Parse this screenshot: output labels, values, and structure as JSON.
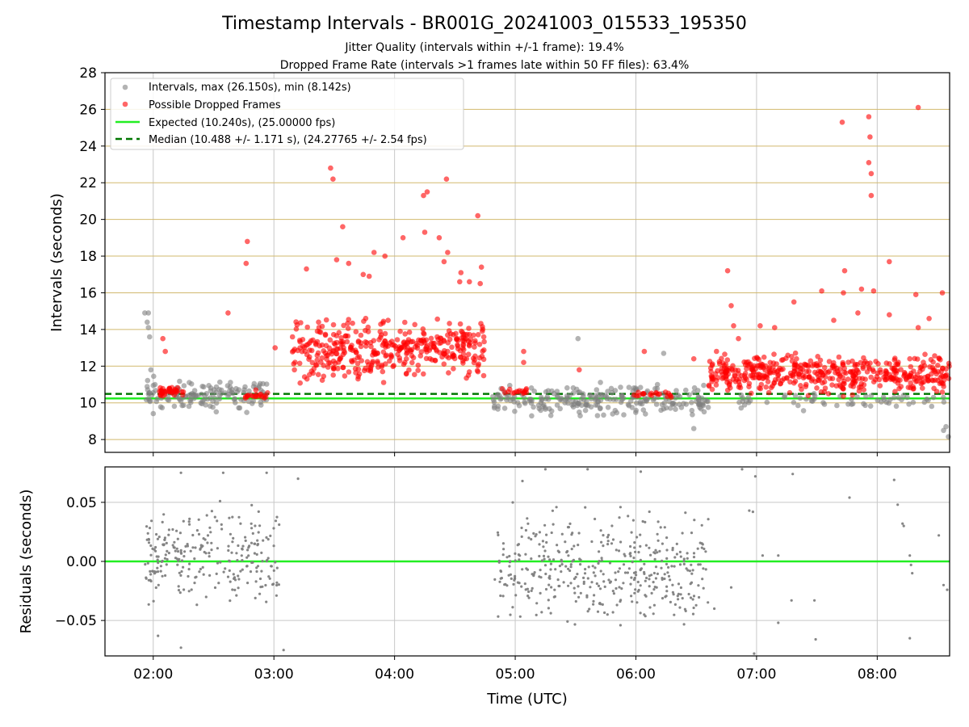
{
  "figure": {
    "title": "Timestamp Intervals - BR001G_20241003_015533_195350",
    "subtitle_1": "Jitter Quality (intervals within +/-1 frame): 19.4%",
    "subtitle_2": "Dropped Frame Rate (intervals >1 frames late within 50 FF files): 63.4%",
    "xlabel": "Time (UTC)"
  },
  "colors": {
    "intervals": "#808080",
    "dropped": "#ff0000",
    "expected": "#22ee22",
    "median": "#007700",
    "hgrid": "#d2b96e",
    "vgrid": "#c8c8c8"
  },
  "chart_data": [
    {
      "type": "scatter",
      "ylabel": "Intervals (seconds)",
      "xlim_hours": [
        1.6,
        8.6
      ],
      "ylim": [
        7.3,
        28
      ],
      "yticks": [
        "8",
        "10",
        "12",
        "14",
        "16",
        "18",
        "20",
        "22",
        "24",
        "26",
        "28"
      ],
      "xticks": [
        "02:00",
        "03:00",
        "04:00",
        "05:00",
        "06:00",
        "07:00",
        "08:00"
      ],
      "grid": "both",
      "legend_position": "upper-left",
      "legend": [
        "Intervals, max (26.150s), min (8.142s)",
        "Possible Dropped Frames",
        "Expected (10.240s), (25.00000 fps)",
        "Median (10.488 +/- 1.171 s), (24.27765 +/- 2.54 fps)"
      ],
      "expected": 10.24,
      "median": 10.488,
      "note": "Full dense point cloud approximated by regions; key labeled values listed explicitly",
      "series": [
        {
          "name": "Intervals, max (26.150s), min (8.142s)",
          "color": "#808080",
          "regions": [
            {
              "t": [
                1.93,
                2.95
              ],
              "y": [
                9.3,
                11.5
              ],
              "n": 140
            },
            {
              "t": [
                4.78,
                6.6
              ],
              "y": [
                9.0,
                11.3
              ],
              "n": 240
            },
            {
              "t": [
                6.8,
                8.6
              ],
              "y": [
                9.4,
                10.8
              ],
              "n": 60
            }
          ],
          "points": [
            [
              1.93,
              14.9
            ],
            [
              1.96,
              14.9
            ],
            [
              1.95,
              14.4
            ],
            [
              1.96,
              14.1
            ],
            [
              1.97,
              13.6
            ],
            [
              1.98,
              11.8
            ],
            [
              5.52,
              13.5
            ],
            [
              6.23,
              12.7
            ],
            [
              6.48,
              8.6
            ],
            [
              8.59,
              8.15
            ],
            [
              8.57,
              8.7
            ],
            [
              8.55,
              8.5
            ]
          ]
        },
        {
          "name": "Possible Dropped Frames",
          "color": "#ff0000",
          "regions": [
            {
              "t": [
                2.05,
                2.25
              ],
              "y": [
                10.2,
                11.0
              ],
              "n": 35
            },
            {
              "t": [
                2.75,
                2.95
              ],
              "y": [
                10.2,
                10.6
              ],
              "n": 18
            },
            {
              "t": [
                3.15,
                4.0
              ],
              "y": [
                10.5,
                15.2
              ],
              "n": 220
            },
            {
              "t": [
                4.0,
                4.75
              ],
              "y": [
                11.0,
                15.0
              ],
              "n": 190
            },
            {
              "t": [
                4.85,
                5.15
              ],
              "y": [
                10.2,
                11.2
              ],
              "n": 16
            },
            {
              "t": [
                5.95,
                6.3
              ],
              "y": [
                10.2,
                10.7
              ],
              "n": 20
            },
            {
              "t": [
                6.6,
                8.6
              ],
              "y": [
                10.2,
                13.0
              ],
              "n": 480
            }
          ],
          "points": [
            [
              2.08,
              13.5
            ],
            [
              2.1,
              12.8
            ],
            [
              2.62,
              14.9
            ],
            [
              2.78,
              18.8
            ],
            [
              2.77,
              17.6
            ],
            [
              2.85,
              10.7
            ],
            [
              3.01,
              13.0
            ],
            [
              3.27,
              17.3
            ],
            [
              3.47,
              22.8
            ],
            [
              3.49,
              22.2
            ],
            [
              3.57,
              19.6
            ],
            [
              3.52,
              17.8
            ],
            [
              3.62,
              17.6
            ],
            [
              3.74,
              17.0
            ],
            [
              3.79,
              16.9
            ],
            [
              3.83,
              18.2
            ],
            [
              3.92,
              18.0
            ],
            [
              4.07,
              19.0
            ],
            [
              4.24,
              21.3
            ],
            [
              4.27,
              21.5
            ],
            [
              4.25,
              19.3
            ],
            [
              4.37,
              19.0
            ],
            [
              4.43,
              22.2
            ],
            [
              4.44,
              18.2
            ],
            [
              4.41,
              17.7
            ],
            [
              4.55,
              17.1
            ],
            [
              4.62,
              16.6
            ],
            [
              4.54,
              16.6
            ],
            [
              4.69,
              20.2
            ],
            [
              4.72,
              17.4
            ],
            [
              4.71,
              16.5
            ],
            [
              5.07,
              12.8
            ],
            [
              5.07,
              12.2
            ],
            [
              5.53,
              11.8
            ],
            [
              6.07,
              12.8
            ],
            [
              6.48,
              12.4
            ],
            [
              6.76,
              17.2
            ],
            [
              6.79,
              15.3
            ],
            [
              6.81,
              14.2
            ],
            [
              6.85,
              13.5
            ],
            [
              7.03,
              14.2
            ],
            [
              7.15,
              14.1
            ],
            [
              7.31,
              15.5
            ],
            [
              7.54,
              16.1
            ],
            [
              7.64,
              14.5
            ],
            [
              7.71,
              25.3
            ],
            [
              7.73,
              17.2
            ],
            [
              7.72,
              16.0
            ],
            [
              7.84,
              14.9
            ],
            [
              7.87,
              16.2
            ],
            [
              7.93,
              25.6
            ],
            [
              7.94,
              24.5
            ],
            [
              7.93,
              23.1
            ],
            [
              7.95,
              22.5
            ],
            [
              7.95,
              21.3
            ],
            [
              7.97,
              16.1
            ],
            [
              8.1,
              17.7
            ],
            [
              8.1,
              14.8
            ],
            [
              8.32,
              15.9
            ],
            [
              8.34,
              26.1
            ],
            [
              8.34,
              14.1
            ],
            [
              8.43,
              14.6
            ],
            [
              8.54,
              16.0
            ]
          ]
        }
      ]
    },
    {
      "type": "scatter",
      "ylabel": "Residuals (seconds)",
      "xlim_hours": [
        1.6,
        8.6
      ],
      "ylim": [
        -0.08,
        0.08
      ],
      "yticks": [
        "−0.05",
        "0.00",
        "0.05"
      ],
      "xticks": [
        "02:00",
        "03:00",
        "04:00",
        "05:00",
        "06:00",
        "07:00",
        "08:00"
      ],
      "grid": "both",
      "zero_line": 0.0,
      "series": [
        {
          "color": "#808080",
          "regions": [
            {
              "t": [
                1.93,
                3.05
              ],
              "y": [
                -0.05,
                0.055
              ],
              "n": 260
            },
            {
              "t": [
                4.82,
                6.6
              ],
              "y": [
                -0.07,
                0.062
              ],
              "n": 420
            }
          ],
          "points": [
            [
              2.23,
              0.075
            ],
            [
              2.58,
              0.075
            ],
            [
              2.94,
              0.075
            ],
            [
              3.2,
              0.07
            ],
            [
              2.04,
              -0.063
            ],
            [
              2.23,
              -0.073
            ],
            [
              3.08,
              -0.075
            ],
            [
              5.06,
              0.068
            ],
            [
              5.25,
              0.078
            ],
            [
              5.6,
              0.078
            ],
            [
              6.04,
              0.076
            ],
            [
              6.88,
              0.078
            ],
            [
              6.99,
              0.072
            ],
            [
              7.3,
              0.074
            ],
            [
              7.77,
              0.054
            ],
            [
              8.14,
              0.069
            ],
            [
              8.17,
              0.048
            ],
            [
              8.21,
              0.032
            ],
            [
              8.22,
              0.03
            ],
            [
              6.94,
              0.043
            ],
            [
              6.97,
              0.042
            ],
            [
              7.05,
              0.005
            ],
            [
              7.18,
              0.005
            ],
            [
              8.27,
              0.005
            ],
            [
              8.28,
              -0.003
            ],
            [
              8.29,
              -0.01
            ],
            [
              8.51,
              0.022
            ],
            [
              8.55,
              -0.02
            ],
            [
              8.58,
              -0.024
            ],
            [
              6.98,
              -0.078
            ],
            [
              7.18,
              -0.052
            ],
            [
              7.29,
              -0.033
            ],
            [
              7.48,
              -0.033
            ],
            [
              7.49,
              -0.066
            ],
            [
              8.27,
              -0.065
            ],
            [
              6.79,
              -0.022
            ],
            [
              6.65,
              -0.04
            ]
          ]
        }
      ]
    }
  ]
}
